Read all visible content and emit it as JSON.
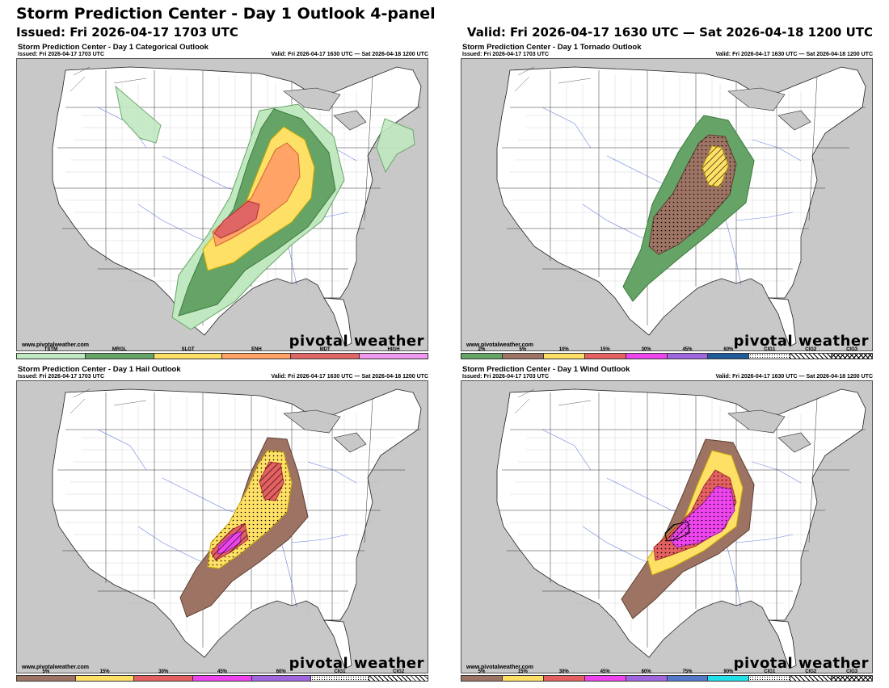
{
  "header": {
    "title": "Storm Prediction Center - Day 1 Outlook 4-panel",
    "issued": "Issued: Fri 2026-04-17 1703 UTC",
    "valid": "Valid: Fri 2026-04-17 1630 UTC — Sat 2026-04-18 1200 UTC"
  },
  "site": "www.pivotalweather.com",
  "logo": "pivotal weather",
  "panels": [
    {
      "title": "Storm Prediction Center - Day 1 Categorical Outlook",
      "issued": "Issued: Fri 2026-04-17 1703 UTC",
      "valid": "Valid: Fri 2026-04-17 1630 UTC — Sat 2026-04-18 1200 UTC",
      "legend": [
        {
          "label": "TSTM",
          "color": "#c1e9c1"
        },
        {
          "label": "MRGL",
          "color": "#66a366"
        },
        {
          "label": "SLGT",
          "color": "#ffe066"
        },
        {
          "label": "ENH",
          "color": "#ffa366"
        },
        {
          "label": "MDT",
          "color": "#e06666"
        },
        {
          "label": "HIGH",
          "color": "#ee99ee"
        }
      ]
    },
    {
      "title": "Storm Prediction Center - Day 1 Tornado Outlook",
      "issued": "Issued: Fri 2026-04-17 1703 UTC",
      "valid": "Valid: Fri 2026-04-17 1630 UTC — Sat 2026-04-18 1200 UTC",
      "legend": [
        {
          "label": "2%",
          "color": "#66a366"
        },
        {
          "label": "5%",
          "color": "#9d7464"
        },
        {
          "label": "10%",
          "color": "#ffe066"
        },
        {
          "label": "15%",
          "color": "#e56060"
        },
        {
          "label": "30%",
          "color": "#ee44ee"
        },
        {
          "label": "45%",
          "color": "#a066e0"
        },
        {
          "label": "60%",
          "color": "#1f5c99"
        },
        {
          "label": "CIG1",
          "color": "#ffffff",
          "hatch": "h1"
        },
        {
          "label": "CIG2",
          "color": "#ffffff",
          "hatch": "h2"
        },
        {
          "label": "CIG3",
          "color": "#ffffff",
          "hatch": "h3"
        }
      ]
    },
    {
      "title": "Storm Prediction Center - Day 1 Hail Outlook",
      "issued": "Issued: Fri 2026-04-17 1703 UTC",
      "valid": "Valid: Fri 2026-04-17 1630 UTC — Sat 2026-04-18 1200 UTC",
      "legend": [
        {
          "label": "5%",
          "color": "#9d7464"
        },
        {
          "label": "15%",
          "color": "#ffe066"
        },
        {
          "label": "30%",
          "color": "#e56060"
        },
        {
          "label": "45%",
          "color": "#ee44ee"
        },
        {
          "label": "60%",
          "color": "#a066e0"
        },
        {
          "label": "CIG1",
          "color": "#ffffff",
          "hatch": "h1"
        },
        {
          "label": "CIG2",
          "color": "#ffffff",
          "hatch": "h2"
        }
      ]
    },
    {
      "title": "Storm Prediction Center - Day 1 Wind Outlook",
      "issued": "Issued: Fri 2026-04-17 1703 UTC",
      "valid": "Valid: Fri 2026-04-17 1630 UTC — Sat 2026-04-18 1200 UTC",
      "legend": [
        {
          "label": "5%",
          "color": "#9d7464"
        },
        {
          "label": "15%",
          "color": "#ffe066"
        },
        {
          "label": "30%",
          "color": "#e56060"
        },
        {
          "label": "45%",
          "color": "#ee44ee"
        },
        {
          "label": "60%",
          "color": "#a066e0"
        },
        {
          "label": "75%",
          "color": "#5577cc"
        },
        {
          "label": "90%",
          "color": "#22e0e8"
        },
        {
          "label": "CIG1",
          "color": "#ffffff",
          "hatch": "h1"
        },
        {
          "label": "CIG2",
          "color": "#ffffff",
          "hatch": "h2"
        },
        {
          "label": "CIG3",
          "color": "#ffffff",
          "hatch": "h3"
        }
      ]
    }
  ]
}
